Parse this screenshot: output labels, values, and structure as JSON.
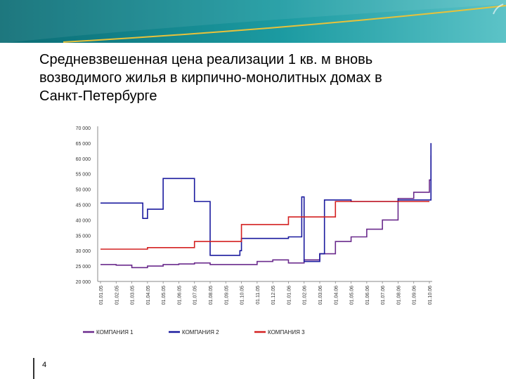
{
  "slide": {
    "title_lines": [
      "Средневзвешенная цена реализации 1 кв. м вновь",
      "возводимого жилья в кирпично-монолитных домах в",
      "Санкт-Петербурге"
    ],
    "page_number": "4",
    "colors": {
      "banner_main": "#0d7f86",
      "banner_light": "#4fb8bf",
      "banner_curve": "#e8c23a"
    }
  },
  "chart_data": {
    "type": "line",
    "step": true,
    "title": "",
    "xlabel": "",
    "ylabel": "",
    "ylim": [
      20000,
      70000
    ],
    "yticks": [
      "70 000",
      "65 000",
      "60 000",
      "55 000",
      "50 000",
      "45 000",
      "40 000",
      "35 000",
      "30 000",
      "25 000",
      "20 000"
    ],
    "ytick_values": [
      70000,
      65000,
      60000,
      55000,
      50000,
      45000,
      40000,
      35000,
      30000,
      25000,
      20000
    ],
    "x_labels": [
      "01.01.05",
      "01.02.05",
      "01.03.05",
      "01.04.05",
      "01.05.05",
      "01.06.05",
      "01.07.05",
      "01.08.05",
      "01.09.05",
      "01.10.05",
      "01.11.05",
      "01.12.05",
      "01.01.06",
      "01.02.06",
      "01.03.06",
      "01.04.06",
      "01.05.06",
      "01.06.06",
      "01.07.06",
      "01.08.06",
      "01.09.06",
      "01.10.06"
    ],
    "legend_position": "bottom",
    "series": [
      {
        "name": "КОМПАНИЯ 1",
        "color": "#6a2a8c",
        "x": [
          0,
          1,
          2,
          3,
          4,
          5,
          6,
          7,
          8,
          9,
          10,
          11,
          12,
          13,
          14,
          15,
          16,
          17,
          18,
          19,
          20,
          21,
          21.1
        ],
        "y": [
          25500,
          25300,
          24500,
          25000,
          25500,
          25700,
          26000,
          25500,
          25500,
          25500,
          26500,
          27000,
          26000,
          27000,
          29000,
          33000,
          34500,
          37000,
          40000,
          47000,
          49000,
          53000,
          61000
        ]
      },
      {
        "name": "КОМПАНИЯ 2",
        "color": "#1a1a9e",
        "x": [
          0,
          1,
          2,
          2.7,
          3,
          3.95,
          4,
          5,
          6,
          6.9,
          7,
          8,
          8.9,
          9,
          10,
          11,
          12,
          12.85,
          13,
          14,
          14.3,
          15,
          16,
          17,
          18,
          19,
          20,
          21,
          21.1
        ],
        "y": [
          45500,
          45500,
          45500,
          40500,
          43500,
          43500,
          53500,
          53500,
          46000,
          46000,
          28500,
          28500,
          30000,
          34000,
          34000,
          34000,
          34500,
          47500,
          26500,
          29000,
          46500,
          46500,
          46000,
          46000,
          46000,
          46500,
          46500,
          46500,
          65000
        ]
      },
      {
        "name": "КОМПАНИЯ 3",
        "color": "#d42020",
        "x": [
          0,
          1,
          2,
          3,
          4,
          5,
          6,
          7,
          8,
          9,
          10,
          11,
          12,
          13,
          14,
          15,
          16,
          17,
          18,
          19,
          20,
          21
        ],
        "y": [
          30500,
          30500,
          30500,
          31000,
          31000,
          31000,
          33000,
          33000,
          33000,
          38500,
          38500,
          38500,
          41000,
          41000,
          41000,
          46000,
          46000,
          46000,
          46000,
          46000,
          46000,
          46000
        ]
      }
    ]
  }
}
